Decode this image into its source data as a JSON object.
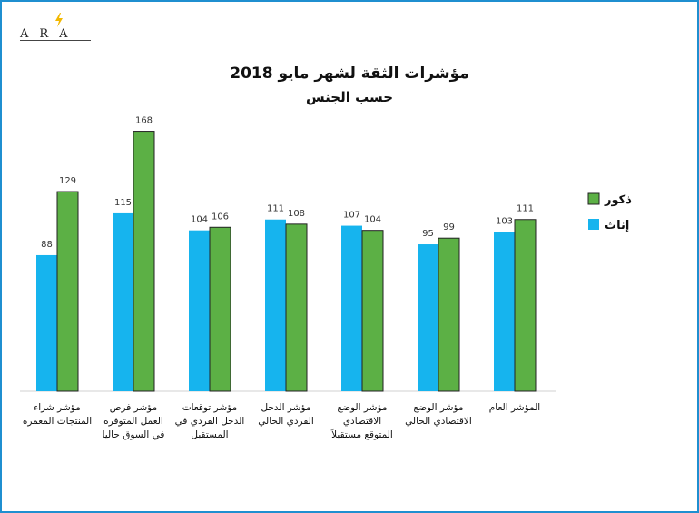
{
  "logo": {
    "text": "ARA",
    "icon": "lightning-spark-icon",
    "accent": "#f2b800"
  },
  "chart_data": {
    "type": "bar",
    "title": "مؤشرات الثقة لشهر مايو 2018",
    "subtitle": "حسب الجنس",
    "categories": [
      [
        "مؤشر شراء",
        "المنتجات المعمرة"
      ],
      [
        "مؤشر فرص",
        "العمل المتوفرة",
        "في السوق حاليا"
      ],
      [
        "مؤشر توقعات",
        "الدخل الفردي في",
        "المستقبل"
      ],
      [
        "مؤشر الدخل",
        "الفردي الحالي"
      ],
      [
        "مؤشر الوضع",
        "الاقتصادي",
        "المتوقع مستقبلاً"
      ],
      [
        "مؤشر الوضع",
        "الاقتصادي الحالي"
      ],
      [
        "المؤشر العام"
      ]
    ],
    "series": [
      {
        "name": "إناث",
        "color": "#16b4ee",
        "values": [
          88,
          115,
          104,
          111,
          107,
          95,
          103
        ]
      },
      {
        "name": "ذكور",
        "color": "#5cb045",
        "values": [
          129,
          168,
          106,
          108,
          104,
          99,
          111
        ]
      }
    ],
    "legend_order": [
      "ذكور",
      "إناث"
    ],
    "legend": "right",
    "grid": false,
    "ylim": [
      0,
      180
    ]
  }
}
